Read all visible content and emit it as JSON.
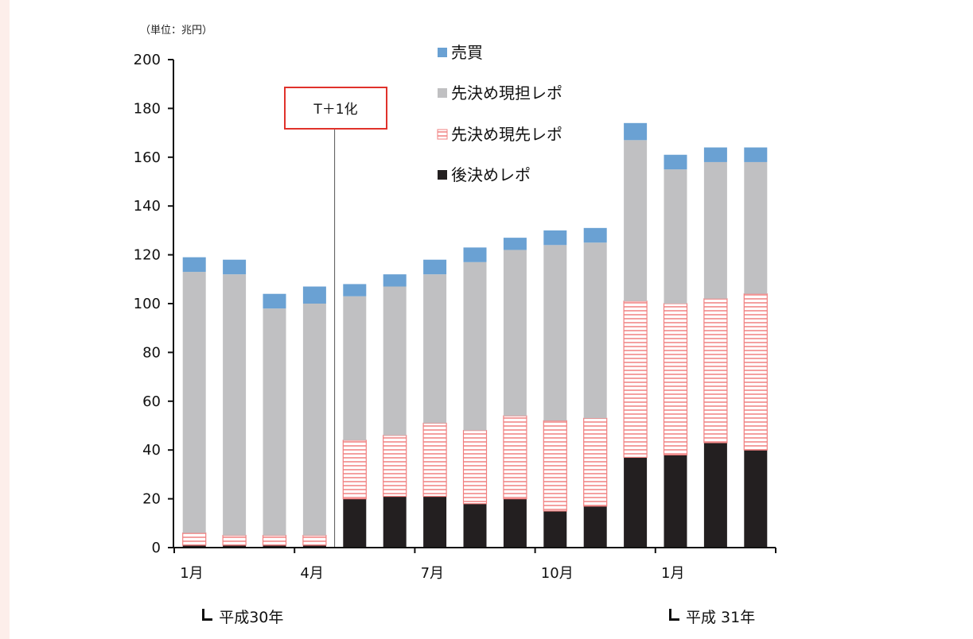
{
  "chart_data": {
    "type": "bar",
    "stacked": true,
    "unit_label": "（単位：兆円）",
    "ylim": [
      0,
      200
    ],
    "yticks": [
      0,
      20,
      40,
      60,
      80,
      100,
      120,
      140,
      160,
      180,
      200
    ],
    "categories": [
      "1月",
      "",
      "",
      "4月",
      "",
      "",
      "7月",
      "",
      "",
      "10月",
      "",
      "",
      "1月",
      "",
      ""
    ],
    "series": [
      {
        "name": "後決めレポ",
        "color": "#231f20",
        "pattern": "solid",
        "values": [
          1,
          1,
          1,
          1,
          20,
          21,
          21,
          18,
          20,
          15,
          17,
          37,
          38,
          43,
          40
        ]
      },
      {
        "name": "先決め現先レポ",
        "color": "#f08080",
        "pattern": "stripe",
        "values": [
          5,
          4,
          4,
          4,
          24,
          25,
          30,
          30,
          34,
          37,
          36,
          64,
          62,
          59,
          64
        ]
      },
      {
        "name": "先決め現担レポ",
        "color": "#c0c0c2",
        "pattern": "solid",
        "values": [
          107,
          107,
          93,
          95,
          59,
          61,
          61,
          69,
          68,
          72,
          72,
          66,
          55,
          56,
          54
        ]
      },
      {
        "name": "売買",
        "color": "#6aa1d3",
        "pattern": "solid",
        "values": [
          6,
          6,
          6,
          7,
          5,
          5,
          6,
          6,
          5,
          6,
          6,
          7,
          6,
          6,
          6
        ]
      }
    ],
    "legend_order": [
      "売買",
      "先決め現担レポ",
      "先決め現先レポ",
      "後決めレポ"
    ],
    "legend_placement": "top-center",
    "annotation": {
      "label": "T＋1化",
      "between": [
        3,
        4
      ]
    },
    "era_labels": [
      {
        "label": "平成30年",
        "category_index": 0
      },
      {
        "label": "平成 31年",
        "category_index": 12
      }
    ]
  }
}
